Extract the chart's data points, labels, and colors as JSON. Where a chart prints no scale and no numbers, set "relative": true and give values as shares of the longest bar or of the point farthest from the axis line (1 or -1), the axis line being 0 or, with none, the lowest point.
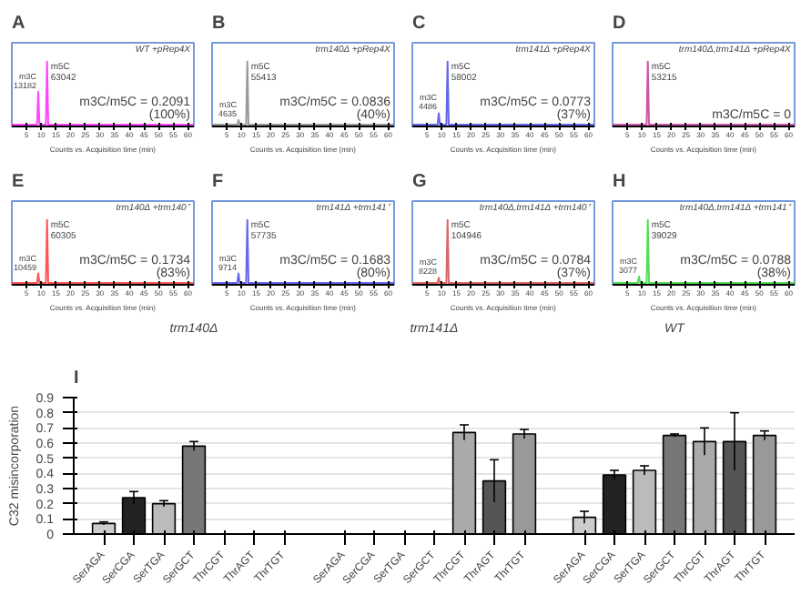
{
  "chart_data": [
    {
      "type": "line",
      "title": "A",
      "subtitle": "WT +pRep4X",
      "xlabel": "Counts vs. Acquisition time (min)",
      "relative": true,
      "xlim": [
        0,
        62
      ],
      "xticks": [
        5,
        10,
        15,
        20,
        25,
        30,
        35,
        40,
        45,
        50,
        55,
        60
      ],
      "x": [
        0,
        8.6,
        9,
        9.4,
        11.6,
        12,
        12.4,
        62
      ],
      "series": [
        {
          "color": "#ff44ff",
          "values": [
            0,
            0,
            0.52,
            0,
            0,
            1,
            0,
            0
          ]
        }
      ],
      "annotations": [
        "m3C\n13182",
        "m5C\n63042",
        "m3C/m5C = 0.2091\n(100%)"
      ]
    },
    {
      "type": "line",
      "title": "B",
      "subtitle": "trm140Δ +pRep4X",
      "xlabel": "Counts vs. Acquisition time (min)",
      "relative": true,
      "xlim": [
        0,
        62
      ],
      "xticks": [
        5,
        10,
        15,
        20,
        25,
        30,
        35,
        40,
        45,
        50,
        55,
        60
      ],
      "x": [
        0,
        8.6,
        9,
        9.4,
        11.6,
        12,
        12.4,
        62
      ],
      "series": [
        {
          "color": "#999999",
          "values": [
            0,
            0,
            0.07,
            0,
            0,
            1,
            0,
            0
          ]
        }
      ],
      "annotations": [
        "m3C\n4635",
        "m5C\n55413",
        "m3C/m5C = 0.0836\n(40%)"
      ]
    },
    {
      "type": "line",
      "title": "C",
      "subtitle": "trm141Δ +pRep4X",
      "xlabel": "Counts vs. Acquisition time (min)",
      "relative": true,
      "xlim": [
        0,
        62
      ],
      "xticks": [
        5,
        10,
        15,
        20,
        25,
        30,
        35,
        40,
        45,
        50,
        55,
        60
      ],
      "x": [
        0,
        8.6,
        9,
        9.4,
        11.6,
        12,
        12.4,
        62
      ],
      "series": [
        {
          "color": "#6666ee",
          "values": [
            0,
            0,
            0.18,
            0,
            0,
            1,
            0,
            0
          ]
        }
      ],
      "annotations": [
        "m3C\n4486",
        "m5C\n58002",
        "m3C/m5C = 0.0773\n(37%)"
      ]
    },
    {
      "type": "line",
      "title": "D",
      "subtitle": "trm140Δ,trm141Δ +pRep4X",
      "xlabel": "Counts vs. Acquisition time (min)",
      "relative": true,
      "xlim": [
        0,
        62
      ],
      "xticks": [
        5,
        10,
        15,
        20,
        25,
        30,
        35,
        40,
        45,
        50,
        55,
        60
      ],
      "x": [
        0,
        8.6,
        9,
        9.4,
        11.6,
        12,
        12.4,
        62
      ],
      "series": [
        {
          "color": "#cc55aa",
          "values": [
            0,
            0,
            0,
            0,
            0,
            1,
            0,
            0
          ]
        }
      ],
      "annotations": [
        "m5C\n53215",
        "m3C/m5C = 0"
      ]
    },
    {
      "type": "line",
      "title": "E",
      "subtitle": "trm140Δ +trm140⁺",
      "xlabel": "Counts vs. Acquisition time (min)",
      "relative": true,
      "xlim": [
        0,
        62
      ],
      "xticks": [
        5,
        10,
        15,
        20,
        25,
        30,
        35,
        40,
        45,
        50,
        55,
        60
      ],
      "x": [
        0,
        8.6,
        9,
        9.4,
        11.6,
        12,
        12.4,
        62
      ],
      "series": [
        {
          "color": "#ff5555",
          "values": [
            0,
            0,
            0.15,
            0,
            0,
            1,
            0,
            0
          ]
        }
      ],
      "annotations": [
        "m3C\n10459",
        "m5C\n60305",
        "m3C/m5C = 0.1734\n(83%)"
      ]
    },
    {
      "type": "line",
      "title": "F",
      "subtitle": "trm141Δ +trm141⁺",
      "xlabel": "Counts vs. Acquisition time (min)",
      "relative": true,
      "xlim": [
        0,
        62
      ],
      "xticks": [
        5,
        10,
        15,
        20,
        25,
        30,
        35,
        40,
        45,
        50,
        55,
        60
      ],
      "x": [
        0,
        8.6,
        9,
        9.4,
        11.6,
        12,
        12.4,
        62
      ],
      "series": [
        {
          "color": "#6666ee",
          "values": [
            0,
            0,
            0.15,
            0,
            0,
            1,
            0,
            0
          ]
        }
      ],
      "annotations": [
        "m3C\n9714",
        "m5C\n57735",
        "m3C/m5C = 0.1683\n(80%)"
      ]
    },
    {
      "type": "line",
      "title": "G",
      "subtitle": "trm140Δ,trm141Δ +trm140⁺",
      "xlabel": "Counts vs. Acquisition time (min)",
      "relative": true,
      "xlim": [
        0,
        62
      ],
      "xticks": [
        5,
        10,
        15,
        20,
        25,
        30,
        35,
        40,
        45,
        50,
        55,
        60
      ],
      "x": [
        0,
        8.6,
        9,
        9.4,
        11.6,
        12,
        12.4,
        62
      ],
      "series": [
        {
          "color": "#dd6666",
          "values": [
            0,
            0,
            0.08,
            0,
            0,
            1,
            0,
            0
          ]
        }
      ],
      "annotations": [
        "m3C\n8228",
        "m5C\n104946",
        "m3C/m5C = 0.0784\n(37%)"
      ]
    },
    {
      "type": "line",
      "title": "H",
      "subtitle": "trm140Δ,trm141Δ +trm141⁺",
      "xlabel": "Counts vs. Acquisition time (min)",
      "relative": true,
      "xlim": [
        0,
        62
      ],
      "xticks": [
        5,
        10,
        15,
        20,
        25,
        30,
        35,
        40,
        45,
        50,
        55,
        60
      ],
      "x": [
        0,
        8.6,
        9,
        9.4,
        11.6,
        12,
        12.4,
        62
      ],
      "series": [
        {
          "color": "#55dd55",
          "values": [
            0,
            0,
            0.1,
            0,
            0,
            1,
            0,
            0
          ]
        }
      ],
      "annotations": [
        "m3C\n3077",
        "m5C\n39029",
        "m3C/m5C = 0.0788\n(38%)"
      ]
    },
    {
      "type": "bar",
      "title": "I",
      "ylabel": "C32 misincorporation",
      "ylim": [
        0,
        0.9
      ],
      "yticks": [
        0,
        0.1,
        0.2,
        0.3,
        0.4,
        0.5,
        0.6,
        0.7,
        0.8,
        0.9
      ],
      "grid": "y",
      "categories": [
        "SerAGA",
        "SerCGA",
        "SerTGA",
        "SerGCT",
        "ThrCGT",
        "ThrAGT",
        "ThrTGT",
        null,
        "SerAGA",
        "SerCGA",
        "SerTGA",
        "SerGCT",
        "ThrCGT",
        "ThrAGT",
        "ThrTGT",
        null,
        "SerAGA",
        "SerCGA",
        "SerTGA",
        "SerGCT",
        "ThrCGT",
        "ThrAGT",
        "ThrTGT"
      ],
      "values": [
        0.07,
        0.24,
        0.2,
        0.58,
        0,
        0,
        0,
        null,
        0,
        0,
        0,
        0,
        0.67,
        0.35,
        0.66,
        null,
        0.11,
        0.39,
        0.42,
        0.65,
        0.61,
        0.61,
        0.65
      ],
      "errors": [
        0.01,
        0.04,
        0.02,
        0.03,
        null,
        null,
        null,
        null,
        null,
        null,
        null,
        null,
        0.05,
        0.14,
        0.03,
        null,
        0.04,
        0.03,
        0.03,
        0.01,
        0.09,
        0.19,
        0.03
      ],
      "colors": [
        "#cccccc",
        "#222222",
        "#bbbbbb",
        "#777777",
        "#aaaaaa",
        "#555555",
        "#999999",
        "#ffffff",
        "#cccccc",
        "#222222",
        "#bbbbbb",
        "#777777",
        "#aaaaaa",
        "#555555",
        "#999999",
        "#ffffff",
        "#cccccc",
        "#222222",
        "#bbbbbb",
        "#777777",
        "#aaaaaa",
        "#555555",
        "#999999"
      ],
      "annotations": [
        "trm140Δ",
        "trm141Δ",
        "WT"
      ]
    }
  ]
}
